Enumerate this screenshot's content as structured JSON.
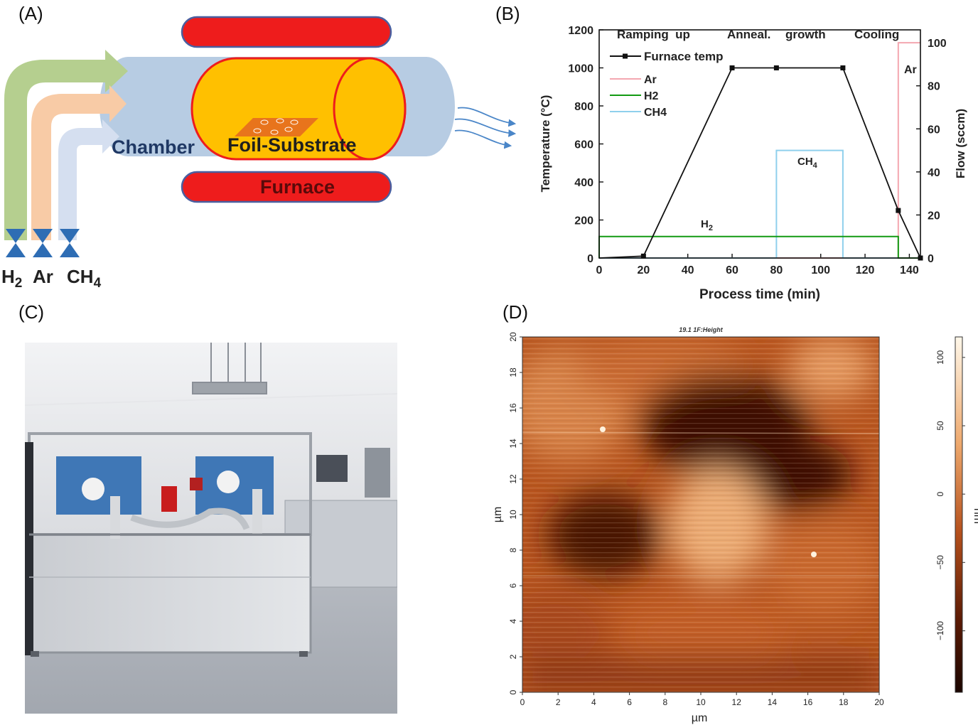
{
  "panel_labels": {
    "a": "(A)",
    "b": "(B)",
    "c": "(C)",
    "d": "(D)"
  },
  "schematic": {
    "chamber_label": "Chamber",
    "substrate_label": "Foil-Substrate",
    "furnace_label": "Furnace",
    "gases": [
      {
        "name": "H",
        "sub": "2",
        "color": "#b5cf8f"
      },
      {
        "name": "Ar",
        "sub": "",
        "color": "#f8cba6"
      },
      {
        "name": "CH",
        "sub": "4",
        "color": "#d5dff0"
      }
    ],
    "colors": {
      "chamber": "#b7cce3",
      "furnace": "#ee1c1c",
      "cylinder": "#ffc000",
      "substrate": "#e8741c",
      "valve": "#2e6db4"
    }
  },
  "process_chart": {
    "chart_data": {
      "type": "line",
      "xlabel": "Process time (min)",
      "ylabel": "Temperature (°C)",
      "ylabel_right": "Flow (sccm)",
      "xlim": [
        0,
        145
      ],
      "ylim": [
        0,
        1200
      ],
      "ylim_right": [
        0,
        106
      ],
      "x_ticks": [
        "0",
        "20",
        "40",
        "60",
        "80",
        "100",
        "120",
        "140"
      ],
      "y_ticks": [
        "0",
        "200",
        "400",
        "600",
        "800",
        "1000",
        "1200"
      ],
      "y_ticks_right": [
        "0",
        "20",
        "40",
        "60",
        "80",
        "100"
      ],
      "phases": [
        "Ramping  up",
        "Anneal.",
        "growth",
        "Cooling"
      ],
      "legend": [
        "Furnace temp",
        "Ar",
        "H2",
        "CH4"
      ],
      "annotations": {
        "ch4": "CH",
        "ch4_sub": "4",
        "h2": "H",
        "h2_sub": "2",
        "ar": "Ar"
      },
      "series": [
        {
          "name": "Furnace temp",
          "axis": "left",
          "color": "#111111",
          "x": [
            0,
            20,
            60,
            80,
            110,
            135,
            145
          ],
          "y": [
            0,
            10,
            1000,
            1000,
            1000,
            250,
            0
          ]
        },
        {
          "name": "Ar",
          "axis": "right",
          "color": "#f4a7b0",
          "x": [
            0,
            80,
            80,
            110,
            110,
            135,
            135,
            145
          ],
          "y": [
            0,
            0,
            0,
            0,
            0,
            0,
            100,
            100
          ]
        },
        {
          "name": "H2",
          "axis": "right",
          "color": "#129a12",
          "x": [
            0,
            0,
            135,
            135,
            145
          ],
          "y": [
            0,
            10,
            10,
            0,
            0
          ]
        },
        {
          "name": "CH4",
          "axis": "right",
          "color": "#8fd0ec",
          "x": [
            0,
            80,
            80,
            110,
            110,
            145
          ],
          "y": [
            0,
            0,
            50,
            50,
            0,
            0
          ]
        }
      ]
    }
  },
  "afm": {
    "title": "19.1 1F:Height",
    "xlabel": "µm",
    "ylabel": "µm",
    "colorbar_label": "nm",
    "x_ticks": [
      "0",
      "2",
      "4",
      "6",
      "8",
      "10",
      "12",
      "14",
      "16",
      "18",
      "20"
    ],
    "y_ticks": [
      "0",
      "2",
      "4",
      "6",
      "8",
      "10",
      "12",
      "14",
      "16",
      "18",
      "20"
    ],
    "colorbar_ticks": [
      "100",
      "50",
      "0",
      "−50",
      "−100"
    ],
    "colors": {
      "low": "#1a0500",
      "mid": "#b5501c",
      "high": "#fff8ea"
    }
  }
}
